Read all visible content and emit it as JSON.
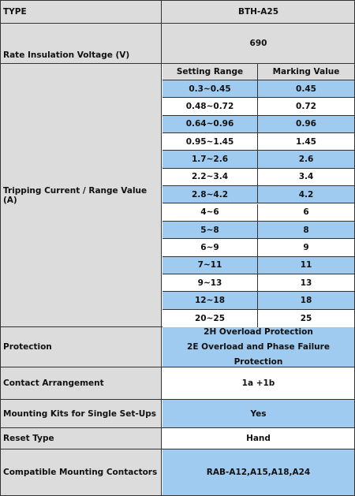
{
  "type_row": {
    "label": "TYPE",
    "value": "BTH-A25"
  },
  "voltage_row": {
    "label": "Rate Insulation Voltage (V)",
    "value": "690"
  },
  "tripping": {
    "label": "Tripping Current / Range Value (A)",
    "headers": [
      "Setting Range",
      "Marking Value"
    ],
    "rows": [
      {
        "range": "0.3~0.45",
        "mark": "0.45"
      },
      {
        "range": "0.48~0.72",
        "mark": "0.72"
      },
      {
        "range": "0.64~0.96",
        "mark": "0.96"
      },
      {
        "range": "0.95~1.45",
        "mark": "1.45"
      },
      {
        "range": "1.7~2.6",
        "mark": "2.6"
      },
      {
        "range": "2.2~3.4",
        "mark": "3.4"
      },
      {
        "range": "2.8~4.2",
        "mark": "4.2"
      },
      {
        "range": "4~6",
        "mark": "6"
      },
      {
        "range": "5~8",
        "mark": "8"
      },
      {
        "range": "6~9",
        "mark": "9"
      },
      {
        "range": "7~11",
        "mark": "11"
      },
      {
        "range": "9~13",
        "mark": "13"
      },
      {
        "range": "12~18",
        "mark": "18"
      },
      {
        "range": "20~25",
        "mark": "25"
      }
    ]
  },
  "protection": {
    "label": "Protection",
    "lines": [
      "2H Overload Protection",
      "2E Overload and Phase Failure Protection"
    ]
  },
  "contact": {
    "label": "Contact Arrangement",
    "value": "1a +1b"
  },
  "mounting": {
    "label": "Mounting Kits for Single Set-Ups",
    "value": "Yes"
  },
  "reset": {
    "label": "Reset Type",
    "value": "Hand"
  },
  "compatible": {
    "label": "Compatible Mounting Contactors",
    "value": "RAB-A12,A15,A18,A24"
  },
  "colors": {
    "accent_blue": "#9fcbf0",
    "header_gray": "#dcdcdc",
    "border": "#333333"
  }
}
